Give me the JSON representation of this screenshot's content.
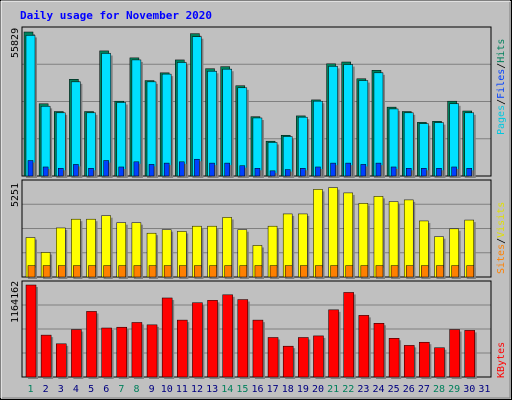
{
  "chart_data": {
    "type": "bar",
    "title": "Daily usage for November 2020",
    "days": [
      "1",
      "2",
      "3",
      "4",
      "5",
      "6",
      "7",
      "8",
      "9",
      "10",
      "11",
      "12",
      "13",
      "14",
      "15",
      "16",
      "17",
      "18",
      "19",
      "20",
      "21",
      "22",
      "23",
      "24",
      "25",
      "26",
      "27",
      "28",
      "29",
      "30",
      "31"
    ],
    "weekend_days": [
      "1",
      "7",
      "8",
      "14",
      "15",
      "21",
      "22",
      "28",
      "29"
    ],
    "panels": {
      "hits": {
        "ymax_label": "55829",
        "ymax": 55829,
        "legend": [
          "Pages",
          "/",
          "Files",
          "/",
          "Hits"
        ],
        "series": {
          "hits": [
            55829,
            28000,
            25000,
            37500,
            25000,
            48500,
            29000,
            45800,
            37000,
            40000,
            45000,
            55200,
            41600,
            42400,
            35000,
            23000,
            13500,
            15800,
            23300,
            29500,
            43500,
            44200,
            37700,
            41000,
            26700,
            25000,
            20800,
            21200,
            29000,
            25200,
            0
          ],
          "files": [
            54500,
            27000,
            24500,
            36500,
            24500,
            47500,
            28500,
            45000,
            36500,
            39500,
            44000,
            54000,
            40600,
            41400,
            34200,
            22500,
            13000,
            15300,
            22800,
            29000,
            42500,
            43200,
            37000,
            40000,
            26000,
            24500,
            20300,
            20700,
            28000,
            24500,
            0
          ],
          "pages": [
            6000,
            3500,
            3000,
            4500,
            3000,
            6000,
            3500,
            5500,
            4500,
            5000,
            5500,
            6500,
            5000,
            5000,
            4000,
            3000,
            2000,
            2500,
            3000,
            3500,
            5000,
            5000,
            4500,
            5000,
            3500,
            3000,
            3000,
            3000,
            3500,
            3000,
            0
          ]
        }
      },
      "sites": {
        "ymax_label": "5251",
        "ymax": 5251,
        "legend": [
          "Sites",
          "/",
          "Visits"
        ],
        "series": {
          "visits": [
            2250,
            1400,
            2800,
            3300,
            3300,
            3500,
            3100,
            3100,
            2500,
            2700,
            2600,
            2900,
            2900,
            3400,
            2700,
            1800,
            2900,
            3600,
            3600,
            5000,
            5100,
            4800,
            4200,
            4600,
            4300,
            4400,
            3200,
            2300,
            2750,
            3250,
            0
          ],
          "sites": [
            650,
            650,
            650,
            650,
            650,
            650,
            650,
            650,
            650,
            650,
            650,
            650,
            650,
            650,
            650,
            650,
            650,
            650,
            650,
            650,
            650,
            650,
            650,
            650,
            650,
            650,
            650,
            650,
            650,
            650,
            0
          ]
        }
      },
      "kbytes": {
        "ymax_label": "1164162",
        "ymax": 1164162,
        "legend": [
          "KBytes"
        ],
        "series": {
          "kbytes": [
            1164162,
            530000,
            420000,
            600000,
            830000,
            620000,
            630000,
            690000,
            660000,
            1000000,
            720000,
            940000,
            970000,
            1040000,
            980000,
            720000,
            500000,
            390000,
            500000,
            520000,
            850000,
            1070000,
            780000,
            680000,
            490000,
            400000,
            440000,
            370000,
            600000,
            590000,
            0
          ]
        }
      }
    },
    "colors": {
      "title": "#0000ff",
      "panel_bg": "#c0c0c0",
      "hits": "#00805c",
      "files": "#0040ff",
      "pages": "#00e0ff",
      "visits": "#ffff00",
      "sites": "#ff8000",
      "kbytes": "#ff0000",
      "weekend_label": "#00805c",
      "weekday_label": "#000080"
    },
    "grid": true
  }
}
